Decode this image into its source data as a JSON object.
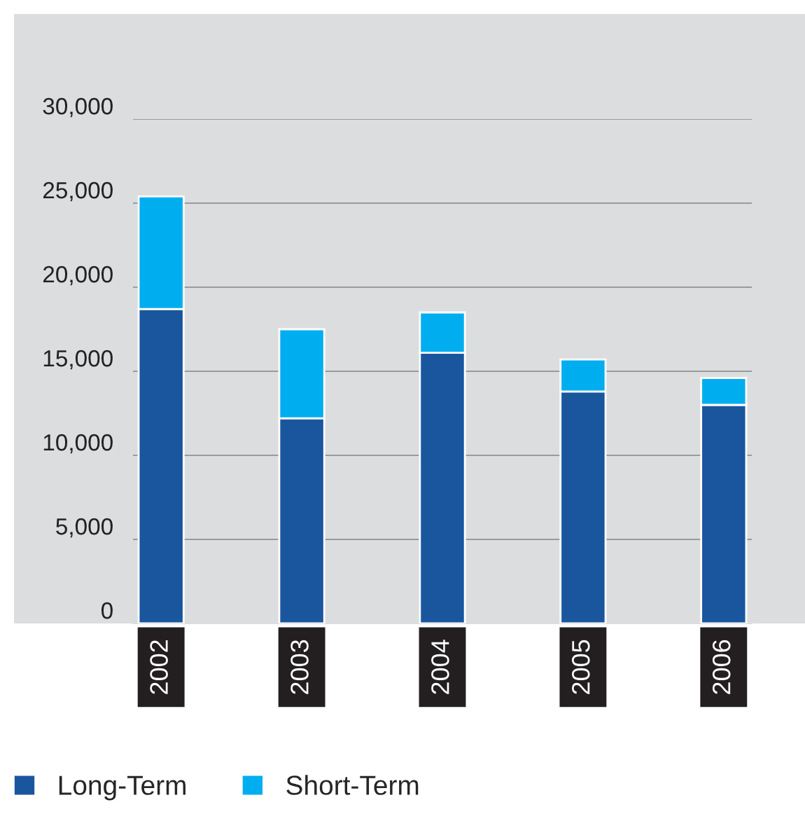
{
  "chart_data": {
    "type": "bar",
    "stacked": true,
    "categories": [
      "2002",
      "2003",
      "2004",
      "2005",
      "2006"
    ],
    "series": [
      {
        "name": "Long-Term",
        "color": "#1a569e",
        "values": [
          18700,
          12200,
          16100,
          13800,
          13000
        ]
      },
      {
        "name": "Short-Term",
        "color": "#00aeef",
        "values": [
          6700,
          5300,
          2400,
          1900,
          1600
        ]
      }
    ],
    "ylim": [
      0,
      30000
    ],
    "yticks": [
      {
        "value": 0,
        "label": "0"
      },
      {
        "value": 5000,
        "label": "5,000"
      },
      {
        "value": 10000,
        "label": "10,000"
      },
      {
        "value": 15000,
        "label": "15,000"
      },
      {
        "value": 20000,
        "label": "20,000"
      },
      {
        "value": 25000,
        "label": "25,000"
      },
      {
        "value": 30000,
        "label": "30,000"
      }
    ],
    "grid": "y",
    "legend": "bottom left"
  }
}
